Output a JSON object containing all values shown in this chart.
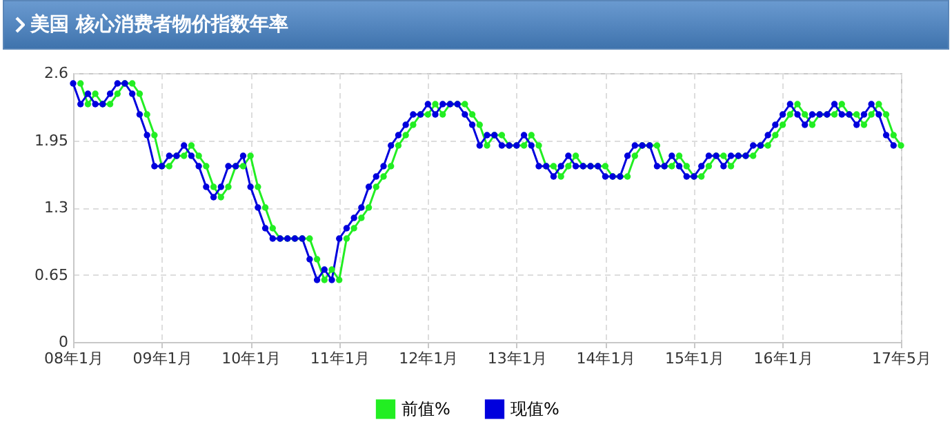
{
  "chart_data": {
    "type": "line",
    "title": "美国  核心消费者物价指数年率",
    "categories": [
      "08年1月",
      null,
      null,
      null,
      null,
      null,
      null,
      null,
      null,
      null,
      null,
      null,
      "09年1月",
      null,
      null,
      null,
      null,
      null,
      null,
      null,
      null,
      null,
      null,
      null,
      "10年1月",
      null,
      null,
      null,
      null,
      null,
      null,
      null,
      null,
      null,
      null,
      null,
      "11年1月",
      null,
      null,
      null,
      null,
      null,
      null,
      null,
      null,
      null,
      null,
      null,
      "12年1月",
      null,
      null,
      null,
      null,
      null,
      null,
      null,
      null,
      null,
      null,
      null,
      "13年1月",
      null,
      null,
      null,
      null,
      null,
      null,
      null,
      null,
      null,
      null,
      null,
      "14年1月",
      null,
      null,
      null,
      null,
      null,
      null,
      null,
      null,
      null,
      null,
      null,
      "15年1月",
      null,
      null,
      null,
      null,
      null,
      null,
      null,
      null,
      null,
      null,
      null,
      "16年1月",
      null,
      null,
      null,
      null,
      null,
      null,
      null,
      null,
      null,
      null,
      null,
      null,
      null,
      null,
      null,
      "17年5月"
    ],
    "series": [
      {
        "name": "前值%",
        "color": "#22ee22",
        "values": [
          null,
          2.5,
          2.3,
          2.4,
          2.3,
          2.3,
          2.4,
          2.5,
          2.5,
          2.4,
          2.2,
          2.0,
          1.7,
          1.7,
          1.8,
          1.8,
          1.9,
          1.8,
          1.7,
          1.5,
          1.4,
          1.5,
          1.7,
          1.7,
          1.8,
          1.5,
          1.3,
          1.1,
          1.0,
          1.0,
          1.0,
          1.0,
          1.0,
          0.8,
          0.6,
          0.7,
          0.6,
          1.0,
          1.1,
          1.2,
          1.3,
          1.5,
          1.6,
          1.7,
          1.9,
          2.0,
          2.1,
          2.2,
          2.2,
          2.3,
          2.2,
          2.3,
          2.3,
          2.3,
          2.2,
          2.1,
          1.9,
          2.0,
          2.0,
          1.9,
          1.9,
          1.9,
          2.0,
          1.9,
          1.7,
          1.7,
          1.6,
          1.7,
          1.8,
          1.7,
          1.7,
          1.7,
          1.7,
          1.6,
          1.6,
          1.6,
          1.8,
          1.9,
          1.9,
          1.9,
          1.7,
          1.7,
          1.8,
          1.7,
          1.6,
          1.6,
          1.7,
          1.8,
          1.8,
          1.7,
          1.8,
          1.8,
          1.8,
          1.9,
          1.9,
          2.0,
          2.1,
          2.2,
          2.3,
          2.2,
          2.1,
          2.2,
          2.2,
          2.2,
          2.3,
          2.2,
          2.2,
          2.1,
          2.2,
          2.3,
          2.2,
          2.0,
          1.9
        ]
      },
      {
        "name": "现值%",
        "color": "#0000dd",
        "values": [
          2.5,
          2.3,
          2.4,
          2.3,
          2.3,
          2.4,
          2.5,
          2.5,
          2.4,
          2.2,
          2.0,
          1.7,
          1.7,
          1.8,
          1.8,
          1.9,
          1.8,
          1.7,
          1.5,
          1.4,
          1.5,
          1.7,
          1.7,
          1.8,
          1.5,
          1.3,
          1.1,
          1.0,
          1.0,
          1.0,
          1.0,
          1.0,
          0.8,
          0.6,
          0.7,
          0.6,
          1.0,
          1.1,
          1.2,
          1.3,
          1.5,
          1.6,
          1.7,
          1.9,
          2.0,
          2.1,
          2.2,
          2.2,
          2.3,
          2.2,
          2.3,
          2.3,
          2.3,
          2.2,
          2.1,
          1.9,
          2.0,
          2.0,
          1.9,
          1.9,
          1.9,
          2.0,
          1.9,
          1.7,
          1.7,
          1.6,
          1.7,
          1.8,
          1.7,
          1.7,
          1.7,
          1.7,
          1.6,
          1.6,
          1.6,
          1.8,
          1.9,
          1.9,
          1.9,
          1.7,
          1.7,
          1.8,
          1.7,
          1.6,
          1.6,
          1.7,
          1.8,
          1.8,
          1.7,
          1.8,
          1.8,
          1.8,
          1.9,
          1.9,
          2.0,
          2.1,
          2.2,
          2.3,
          2.2,
          2.1,
          2.2,
          2.2,
          2.2,
          2.3,
          2.2,
          2.2,
          2.1,
          2.2,
          2.3,
          2.2,
          2.0,
          1.9,
          null
        ]
      }
    ],
    "ylim": [
      0,
      2.6
    ],
    "yticks": [
      0,
      0.65,
      1.3,
      1.95,
      2.6
    ],
    "grid": true,
    "legend": "bottom",
    "marker": "circle",
    "line_style": "solid"
  }
}
